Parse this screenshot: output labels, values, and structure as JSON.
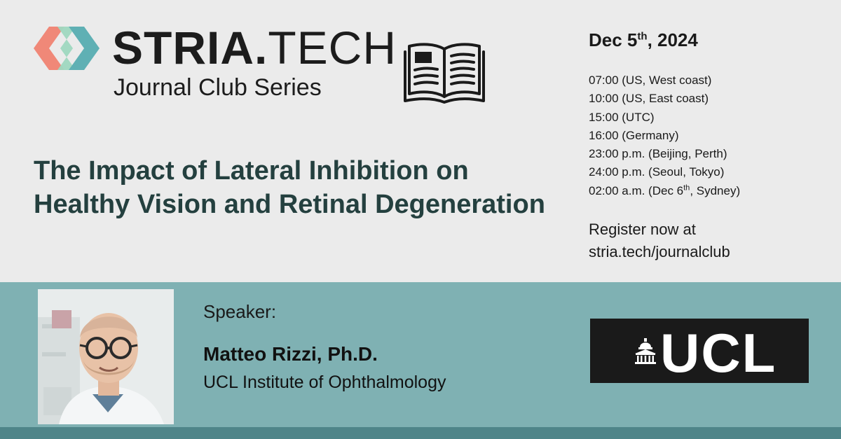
{
  "header": {
    "brand_bold": "STRIA",
    "brand_dot": ".",
    "brand_light": "TECH",
    "series": "Journal Club Series"
  },
  "talk": {
    "title_line1": "The Impact of Lateral Inhibition on",
    "title_line2": "Healthy Vision and Retinal Degeneration"
  },
  "schedule": {
    "date_prefix": "Dec 5",
    "date_sup": "th",
    "date_suffix": ", 2024",
    "times": [
      "07:00 (US, West coast)",
      "10:00 (US, East coast)",
      "15:00 (UTC)",
      "16:00 (Germany)",
      "23:00 p.m. (Beijing, Perth)",
      "24:00 p.m. (Seoul, Tokyo)"
    ],
    "last_time_prefix": "02:00 a.m. (Dec 6",
    "last_time_sup": "th",
    "last_time_suffix": ", Sydney)"
  },
  "register": {
    "line1": "Register now at",
    "line2": "stria.tech/journalclub"
  },
  "speaker": {
    "label": "Speaker:",
    "name": "Matteo Rizzi, Ph.D.",
    "affiliation": "UCL Institute of Ophthalmology"
  },
  "ucl_logo": {
    "text": "UCL"
  },
  "colors": {
    "background_top": "#ebebeb",
    "band": "#7fb1b3",
    "strip": "#4f8589",
    "title": "#24403f",
    "logo_coral": "#f08878",
    "logo_mint": "#9fd8c0",
    "logo_teal": "#5fb0b4"
  },
  "icons": [
    "stria-logo-mark",
    "open-book-icon",
    "ucl-portico-icon"
  ]
}
